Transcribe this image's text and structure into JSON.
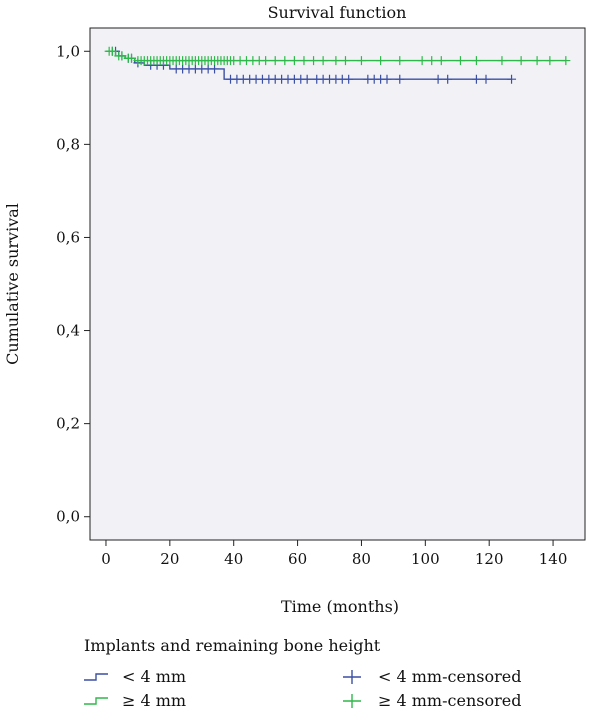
{
  "chart_data": {
    "type": "line",
    "title": "Survival function",
    "xlabel": "Time (months)",
    "ylabel": "Cumulative survival",
    "xlim": [
      -5,
      150
    ],
    "ylim": [
      -0.05,
      1.05
    ],
    "x_ticks": [
      0,
      20,
      40,
      60,
      80,
      100,
      120,
      140
    ],
    "y_ticks": [
      0.0,
      0.2,
      0.4,
      0.6,
      0.8,
      1.0
    ],
    "x_tick_labels": [
      "0",
      "20",
      "40",
      "60",
      "80",
      "100",
      "120",
      "140"
    ],
    "y_tick_labels": [
      "0,0",
      "0,2",
      "0,4",
      "0,6",
      "0,8",
      "1,0"
    ],
    "grid": false,
    "plot_background": "#f2f2f6",
    "series": [
      {
        "name": "< 4 mm",
        "color": "#3b4fa6",
        "steps": [
          [
            0,
            1.0
          ],
          [
            4,
            0.99
          ],
          [
            6,
            0.985
          ],
          [
            9,
            0.975
          ],
          [
            12,
            0.97
          ],
          [
            20,
            0.962
          ],
          [
            37,
            0.94
          ],
          [
            127,
            0.94
          ]
        ],
        "censored_x": [
          2,
          3,
          5,
          7,
          8,
          10,
          14,
          16,
          18,
          22,
          24,
          26,
          28,
          30,
          32,
          34,
          39,
          41,
          43,
          45,
          47,
          49,
          51,
          53,
          55,
          57,
          59,
          61,
          63,
          66,
          68,
          70,
          72,
          74,
          76,
          82,
          84,
          86,
          88,
          92,
          104,
          107,
          116,
          119,
          127
        ]
      },
      {
        "name": "≥ 4 mm",
        "color": "#2eb84a",
        "steps": [
          [
            0,
            1.0
          ],
          [
            3,
            0.99
          ],
          [
            6,
            0.985
          ],
          [
            9,
            0.98
          ],
          [
            144,
            0.98
          ]
        ],
        "censored_x": [
          1,
          2,
          4,
          5,
          7,
          8,
          10,
          11,
          12,
          13,
          14,
          15,
          16,
          17,
          18,
          19,
          20,
          21,
          22,
          23,
          24,
          25,
          26,
          27,
          28,
          29,
          30,
          31,
          32,
          33,
          34,
          35,
          36,
          37,
          38,
          39,
          40,
          42,
          44,
          46,
          48,
          50,
          53,
          56,
          59,
          62,
          65,
          68,
          72,
          75,
          80,
          86,
          92,
          99,
          102,
          105,
          111,
          116,
          124,
          130,
          135,
          139,
          144
        ]
      }
    ],
    "legend": {
      "placement": "bottom",
      "title": "Implants and remaining bone height",
      "entries": [
        {
          "label": "< 4 mm",
          "color": "#3b4fa6",
          "symbol": "step"
        },
        {
          "label": "< 4 mm-censored",
          "color": "#3b4fa6",
          "symbol": "plus"
        },
        {
          "label": "≥ 4 mm",
          "color": "#2eb84a",
          "symbol": "step"
        },
        {
          "label": "≥ 4 mm-censored",
          "color": "#2eb84a",
          "symbol": "plus"
        }
      ]
    }
  }
}
